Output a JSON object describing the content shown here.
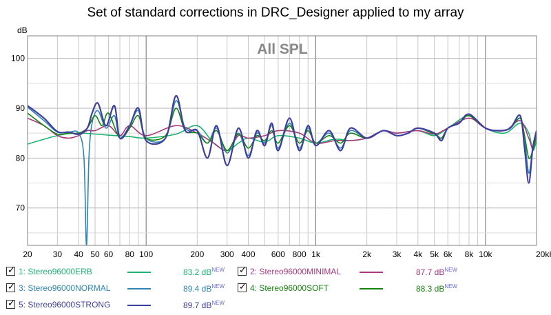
{
  "chart_data": {
    "type": "line",
    "title": "Set of standard corrections in DRC_Designer applied to my array",
    "annotation": "All SPL",
    "ylabel": "dB",
    "xlim": [
      20,
      20000
    ],
    "ylim": [
      62.5,
      104.5
    ],
    "x_scale": "log",
    "y_ticks": [
      70,
      80,
      90,
      100
    ],
    "x_tick_labels": [
      {
        "x": 20,
        "label": "20"
      },
      {
        "x": 30,
        "label": "30"
      },
      {
        "x": 40,
        "label": "40"
      },
      {
        "x": 50,
        "label": "50"
      },
      {
        "x": 60,
        "label": "60"
      },
      {
        "x": 80,
        "label": "80"
      },
      {
        "x": 100,
        "label": "100"
      },
      {
        "x": 200,
        "label": "200"
      },
      {
        "x": 300,
        "label": "300"
      },
      {
        "x": 400,
        "label": "400"
      },
      {
        "x": 600,
        "label": "600"
      },
      {
        "x": 800,
        "label": "800"
      },
      {
        "x": 1000,
        "label": "1k"
      },
      {
        "x": 2000,
        "label": "2k"
      },
      {
        "x": 3000,
        "label": "3k"
      },
      {
        "x": 4000,
        "label": "4k"
      },
      {
        "x": 5000,
        "label": "5k"
      },
      {
        "x": 6000,
        "label": "6k"
      },
      {
        "x": 8000,
        "label": "8k"
      },
      {
        "x": 10000,
        "label": "10k"
      },
      {
        "x": 20000,
        "label": "20kHz"
      }
    ],
    "grid": true,
    "legend_position": "bottom",
    "series": [
      {
        "name": "1: Stereo96000ERB",
        "color": "#1db270",
        "value_label": "83.2 dB",
        "badge": "NEW",
        "points": [
          [
            20,
            82.8
          ],
          [
            30,
            84.5
          ],
          [
            40,
            85
          ],
          [
            60,
            84.6
          ],
          [
            80,
            84.3
          ],
          [
            100,
            84
          ],
          [
            150,
            84.8
          ],
          [
            200,
            86.5
          ],
          [
            250,
            83
          ],
          [
            300,
            81.5
          ],
          [
            350,
            83
          ],
          [
            400,
            84
          ],
          [
            500,
            83.2
          ],
          [
            600,
            84.5
          ],
          [
            800,
            84
          ],
          [
            1000,
            83
          ],
          [
            1300,
            83.8
          ],
          [
            1600,
            83.5
          ],
          [
            2000,
            84
          ],
          [
            2500,
            85.5
          ],
          [
            3000,
            85
          ],
          [
            4000,
            85.5
          ],
          [
            5000,
            84.5
          ],
          [
            6000,
            86
          ],
          [
            8000,
            88.5
          ],
          [
            10000,
            86
          ],
          [
            13000,
            85
          ],
          [
            16000,
            87
          ],
          [
            18000,
            85
          ],
          [
            19000,
            81.5
          ],
          [
            20000,
            83.5
          ]
        ]
      },
      {
        "name": "2: Stereo96000MINIMAL",
        "color": "#a8387e",
        "value_label": "87.7 dB",
        "badge": "NEW",
        "points": [
          [
            20,
            88
          ],
          [
            25,
            86.5
          ],
          [
            30,
            84.5
          ],
          [
            35,
            84
          ],
          [
            40,
            84.5
          ],
          [
            45,
            85.5
          ],
          [
            50,
            85.5
          ],
          [
            60,
            86.5
          ],
          [
            70,
            84.5
          ],
          [
            80,
            86.5
          ],
          [
            100,
            84.5
          ],
          [
            150,
            86.5
          ],
          [
            200,
            85
          ],
          [
            250,
            83
          ],
          [
            300,
            81.5
          ],
          [
            350,
            84.5
          ],
          [
            400,
            84
          ],
          [
            500,
            84.5
          ],
          [
            600,
            85.5
          ],
          [
            800,
            85
          ],
          [
            1000,
            83
          ],
          [
            1300,
            83.5
          ],
          [
            1600,
            83.5
          ],
          [
            2000,
            84
          ],
          [
            2500,
            85.5
          ],
          [
            3000,
            85
          ],
          [
            4000,
            85.5
          ],
          [
            5000,
            84.8
          ],
          [
            6000,
            86
          ],
          [
            8000,
            88
          ],
          [
            10000,
            86
          ],
          [
            13000,
            85.5
          ],
          [
            16000,
            87.5
          ],
          [
            18000,
            84
          ],
          [
            19000,
            82
          ],
          [
            20000,
            84.5
          ]
        ]
      },
      {
        "name": "3: Stereo96000NORMAL",
        "color": "#2f85b0",
        "value_label": "89.4 dB",
        "badge": "NEW",
        "points": [
          [
            20,
            90.2
          ],
          [
            25,
            87.5
          ],
          [
            30,
            85.2
          ],
          [
            35,
            85.2
          ],
          [
            40,
            85
          ],
          [
            43,
            80
          ],
          [
            44.5,
            62.5
          ],
          [
            46,
            80
          ],
          [
            48,
            87
          ],
          [
            52,
            89.5
          ],
          [
            58,
            86
          ],
          [
            65,
            88.5
          ],
          [
            70,
            84
          ],
          [
            80,
            86.5
          ],
          [
            90,
            89.5
          ],
          [
            100,
            84
          ],
          [
            130,
            84
          ],
          [
            150,
            91.5
          ],
          [
            170,
            86
          ],
          [
            200,
            85.5
          ],
          [
            230,
            83
          ],
          [
            260,
            86
          ],
          [
            300,
            81
          ],
          [
            350,
            85
          ],
          [
            400,
            80.5
          ],
          [
            450,
            85
          ],
          [
            500,
            83
          ],
          [
            550,
            86.5
          ],
          [
            600,
            82
          ],
          [
            700,
            87
          ],
          [
            800,
            82
          ],
          [
            900,
            86
          ],
          [
            1000,
            83
          ],
          [
            1200,
            85
          ],
          [
            1400,
            82
          ],
          [
            1600,
            85.5
          ],
          [
            2000,
            84
          ],
          [
            2500,
            85.5
          ],
          [
            3000,
            84.5
          ],
          [
            3500,
            85
          ],
          [
            4000,
            86
          ],
          [
            5000,
            85
          ],
          [
            5500,
            84
          ],
          [
            6000,
            86
          ],
          [
            7000,
            87
          ],
          [
            8000,
            88.5
          ],
          [
            10000,
            86
          ],
          [
            12000,
            85.5
          ],
          [
            14000,
            86
          ],
          [
            16000,
            88
          ],
          [
            17000,
            84
          ],
          [
            18000,
            77
          ],
          [
            19000,
            82
          ],
          [
            20000,
            85
          ]
        ]
      },
      {
        "name": "4: Stereo96000SOFT",
        "color": "#168410",
        "value_label": "88.3 dB",
        "badge": "NEW",
        "points": [
          [
            20,
            89
          ],
          [
            25,
            86.5
          ],
          [
            30,
            84.8
          ],
          [
            35,
            85
          ],
          [
            40,
            85
          ],
          [
            45,
            86
          ],
          [
            50,
            88.5
          ],
          [
            55,
            86.5
          ],
          [
            60,
            89
          ],
          [
            70,
            84
          ],
          [
            80,
            86
          ],
          [
            90,
            88.5
          ],
          [
            100,
            84
          ],
          [
            130,
            84.5
          ],
          [
            150,
            90
          ],
          [
            170,
            85.5
          ],
          [
            200,
            85
          ],
          [
            230,
            83
          ],
          [
            260,
            85.5
          ],
          [
            300,
            81.5
          ],
          [
            350,
            84.8
          ],
          [
            400,
            82
          ],
          [
            450,
            84.5
          ],
          [
            500,
            83.5
          ],
          [
            550,
            85.5
          ],
          [
            600,
            83
          ],
          [
            700,
            86.5
          ],
          [
            800,
            83
          ],
          [
            900,
            85.5
          ],
          [
            1000,
            83
          ],
          [
            1200,
            84.5
          ],
          [
            1400,
            83
          ],
          [
            1600,
            85
          ],
          [
            2000,
            84
          ],
          [
            2500,
            85.5
          ],
          [
            3000,
            84.5
          ],
          [
            3500,
            85
          ],
          [
            4000,
            86
          ],
          [
            5000,
            84.8
          ],
          [
            5500,
            84
          ],
          [
            6000,
            86
          ],
          [
            7000,
            87
          ],
          [
            8000,
            88.5
          ],
          [
            10000,
            86
          ],
          [
            12000,
            85.5
          ],
          [
            14000,
            86
          ],
          [
            16000,
            88
          ],
          [
            17000,
            84.5
          ],
          [
            18000,
            80
          ],
          [
            19000,
            81.5
          ],
          [
            20000,
            84.5
          ]
        ]
      },
      {
        "name": "5: Stereo96000STRONG",
        "color": "#3e3ea0",
        "value_label": "89.7 dB",
        "badge": "NEW",
        "points": [
          [
            20,
            90.5
          ],
          [
            25,
            88
          ],
          [
            30,
            85.3
          ],
          [
            35,
            85.2
          ],
          [
            40,
            84.8
          ],
          [
            45,
            86
          ],
          [
            48,
            89
          ],
          [
            52,
            91
          ],
          [
            58,
            86.5
          ],
          [
            65,
            90.5
          ],
          [
            70,
            84
          ],
          [
            80,
            86.5
          ],
          [
            90,
            90
          ],
          [
            100,
            83.5
          ],
          [
            130,
            84
          ],
          [
            150,
            92.5
          ],
          [
            170,
            85.5
          ],
          [
            200,
            85.5
          ],
          [
            230,
            80
          ],
          [
            260,
            86.5
          ],
          [
            300,
            78.5
          ],
          [
            350,
            86
          ],
          [
            400,
            80
          ],
          [
            450,
            85.5
          ],
          [
            500,
            82.5
          ],
          [
            550,
            87
          ],
          [
            600,
            81.5
          ],
          [
            700,
            88
          ],
          [
            800,
            81.5
          ],
          [
            900,
            86.5
          ],
          [
            1000,
            82.5
          ],
          [
            1200,
            85.5
          ],
          [
            1400,
            81.5
          ],
          [
            1600,
            86
          ],
          [
            2000,
            84
          ],
          [
            2500,
            85.5
          ],
          [
            3000,
            84.5
          ],
          [
            3500,
            85
          ],
          [
            4000,
            86
          ],
          [
            5000,
            85
          ],
          [
            5500,
            83.5
          ],
          [
            6000,
            86
          ],
          [
            7000,
            87
          ],
          [
            8000,
            88.8
          ],
          [
            10000,
            86
          ],
          [
            12000,
            85.5
          ],
          [
            14000,
            86
          ],
          [
            16000,
            88.5
          ],
          [
            17000,
            82
          ],
          [
            18000,
            75
          ],
          [
            19000,
            82
          ],
          [
            20000,
            85.5
          ]
        ]
      }
    ]
  }
}
